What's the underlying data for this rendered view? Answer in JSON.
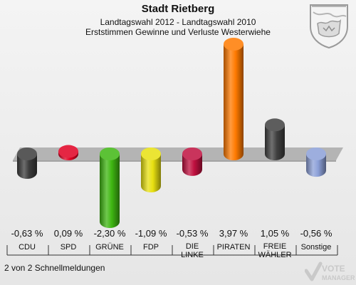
{
  "header": {
    "title": "Stadt Rietberg",
    "subtitle1": "Landtagswahl 2012 - Landtagswahl 2010",
    "subtitle2": "Erststimmen Gewinne und Verluste Westerwiehe"
  },
  "footer": {
    "text": "2 von 2 Schnellmeldungen"
  },
  "logo": {
    "line1": "VOTE",
    "line2": "MANAGER"
  },
  "colors": {
    "background": "#efefef",
    "band": "#b4b4b4"
  },
  "chart_data": {
    "type": "bar",
    "title": "Landtagswahl 2012 - Landtagswahl 2010",
    "categories": [
      "CDU",
      "SPD",
      "GRÜNE",
      "FDP",
      "DIE LINKE",
      "PIRATEN",
      "FREIE WÄHLER",
      "Sonstige"
    ],
    "category_lines": [
      [
        "CDU"
      ],
      [
        "SPD"
      ],
      [
        "GRÜNE"
      ],
      [
        "FDP"
      ],
      [
        "DIE",
        "LINKE"
      ],
      [
        "PIRATEN"
      ],
      [
        "FREIE",
        "WÄHLER"
      ],
      [
        "Sonstige"
      ]
    ],
    "values": [
      -0.63,
      0.09,
      -2.3,
      -1.09,
      -0.53,
      3.97,
      1.05,
      -0.56
    ],
    "value_labels": [
      "-0,63 %",
      "0,09 %",
      "-2,30 %",
      "-1,09 %",
      "-0,53 %",
      "3,97 %",
      "1,05 %",
      "-0,56 %"
    ],
    "colors": [
      "#3c3c3c",
      "#e00022",
      "#3fb712",
      "#e8e010",
      "#c0103f",
      "#ff7a00",
      "#404040",
      "#8ca0d8"
    ],
    "xlabel": "",
    "ylabel": "",
    "ylim": [
      -2.3,
      3.97
    ],
    "grid": false,
    "legend": "none"
  }
}
